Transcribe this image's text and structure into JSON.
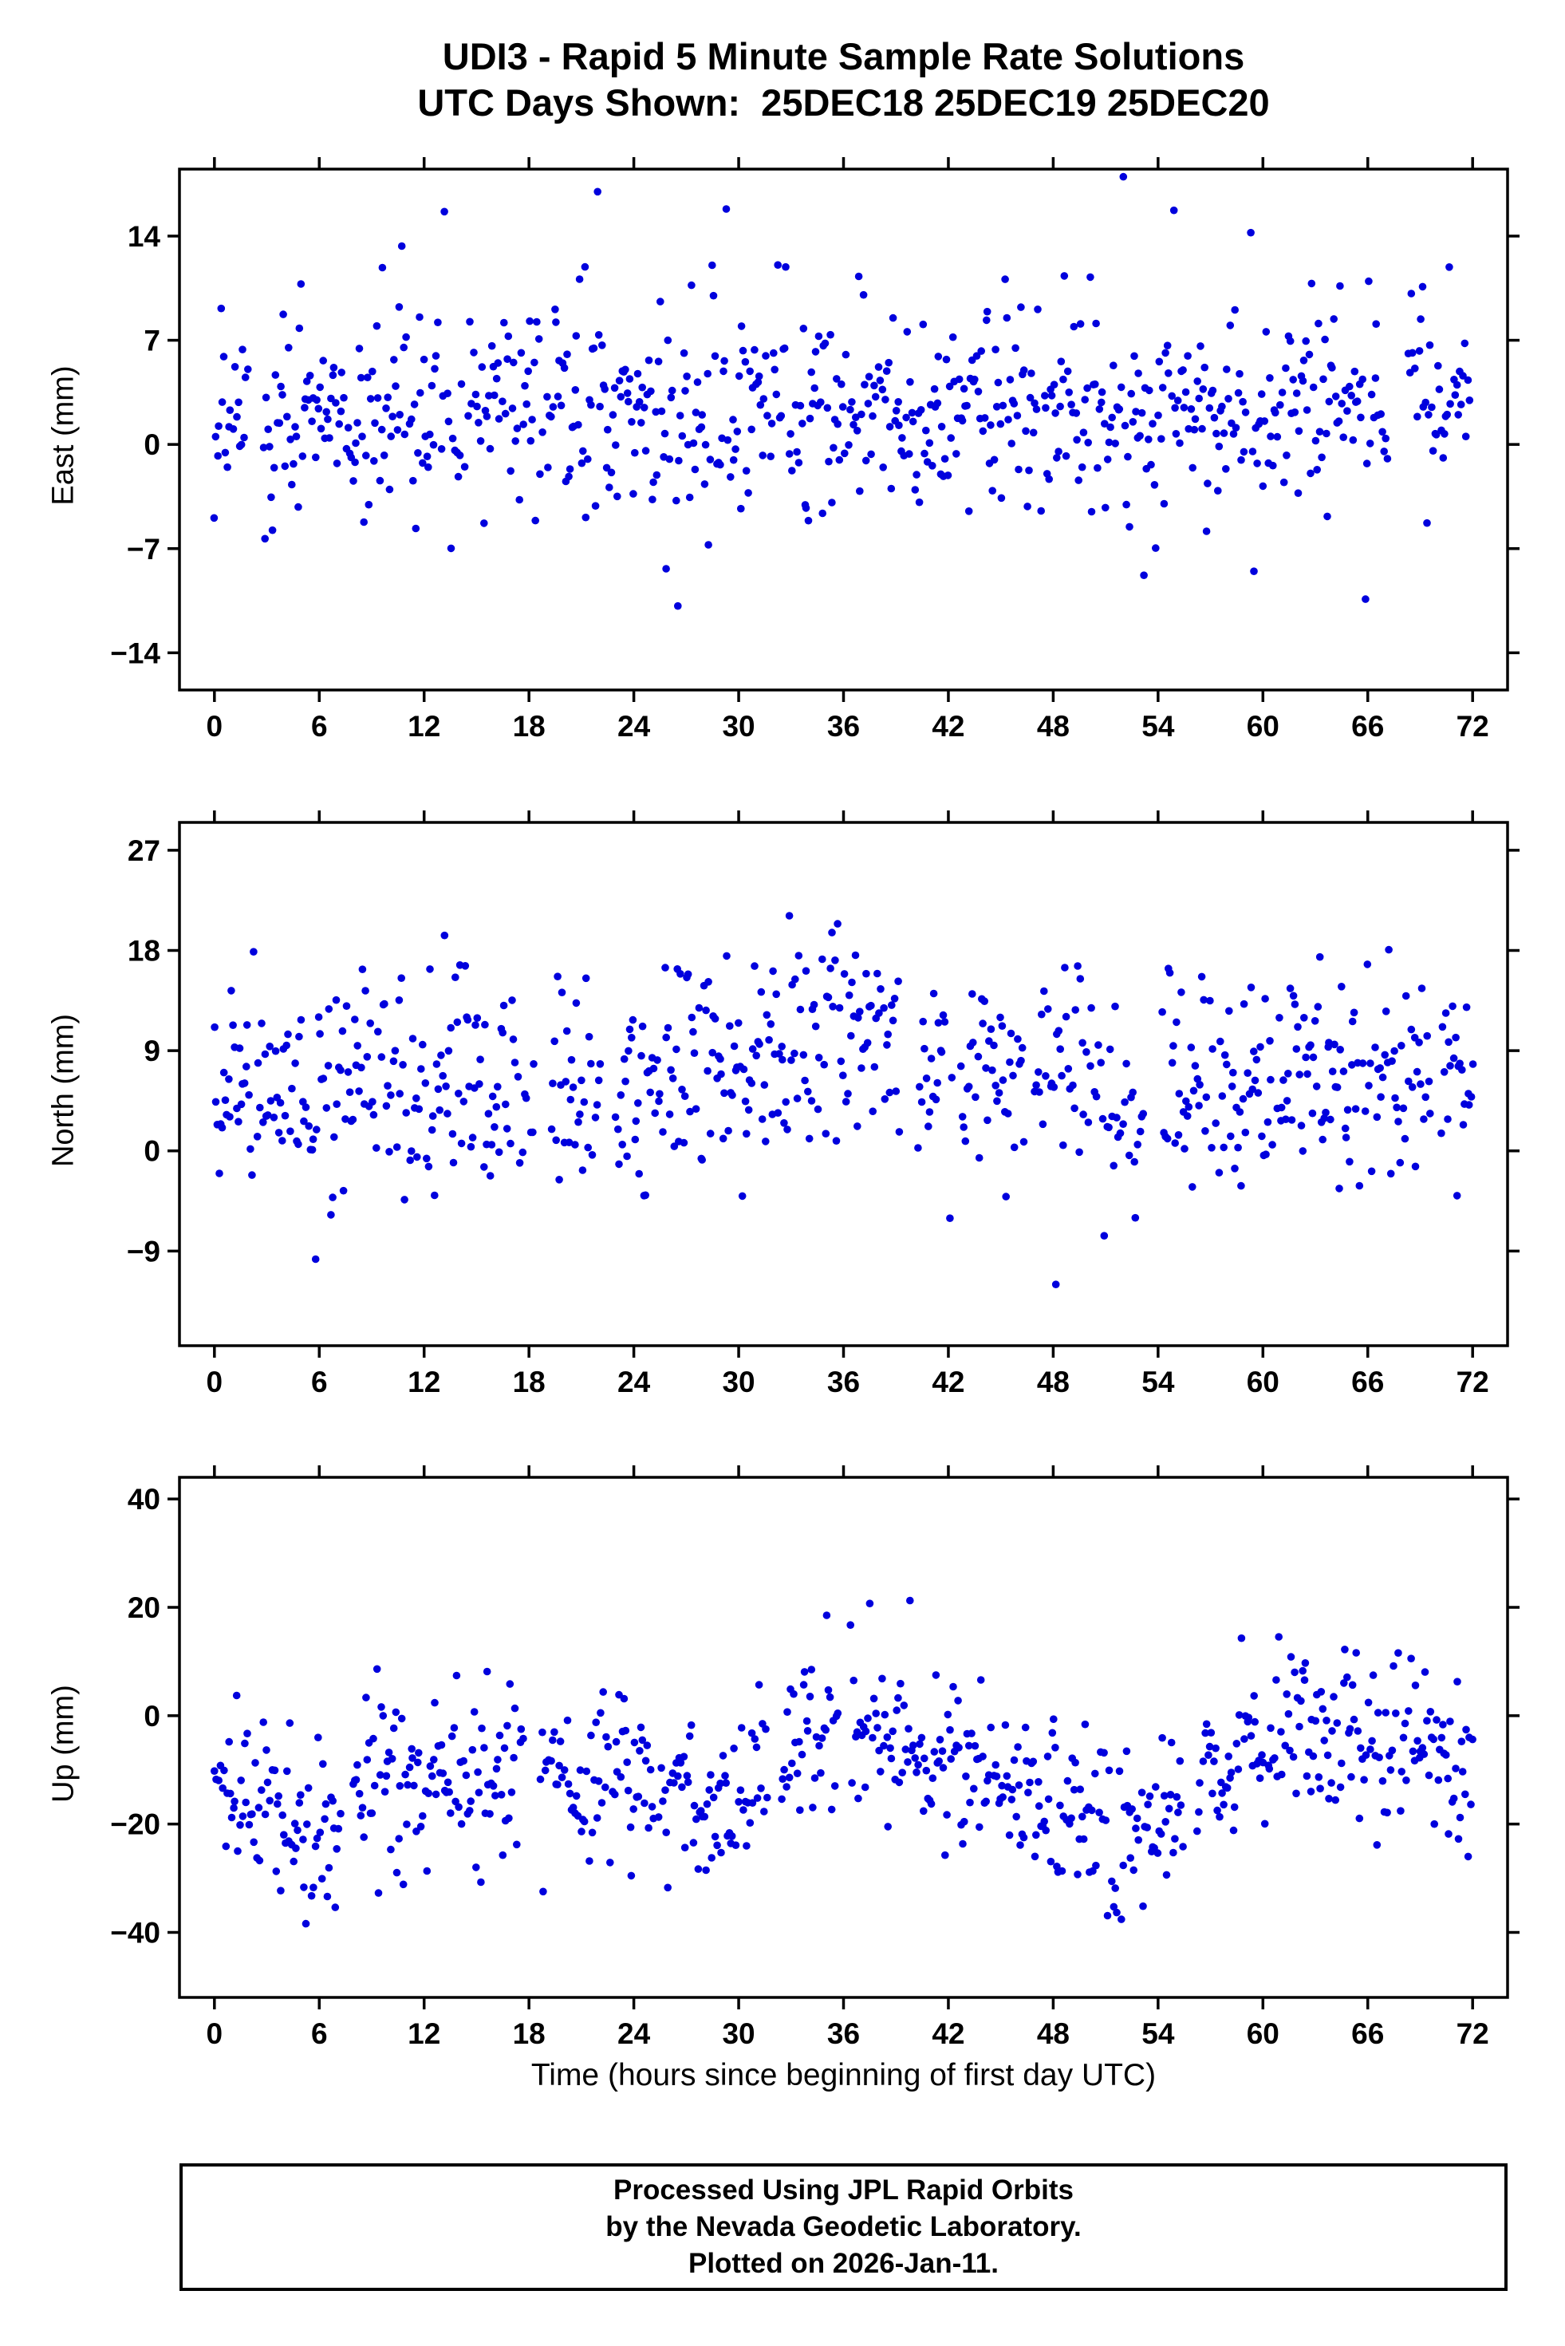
{
  "title_line1": "UDI3 - Rapid 5 Minute Sample Rate Solutions",
  "title_line2": "UTC Days Shown:  25DEC18 25DEC19 25DEC20",
  "footer": {
    "line1": "Processed Using JPL Rapid Orbits",
    "line2": "by the Nevada Geodetic Laboratory.",
    "line3": "Plotted on 2026-Jan-11."
  },
  "colors": {
    "point": "#0000dd",
    "axis": "#000000",
    "background": "#ffffff"
  },
  "chart_data": [
    {
      "type": "scatter",
      "title": "",
      "ylabel": "East (mm)",
      "xlabel": "",
      "xlim": [
        -2,
        74
      ],
      "ylim": [
        -16.5,
        18.5
      ],
      "xticks": [
        0,
        6,
        12,
        18,
        24,
        30,
        36,
        42,
        48,
        54,
        60,
        66,
        72
      ],
      "yticks": [
        -14,
        -7,
        0,
        7,
        14
      ],
      "grid": false,
      "legend": "none",
      "gen": {
        "seed": 20181225,
        "n": 800,
        "gap_rate": 0.05,
        "mean": 2.3,
        "std": 3.7,
        "outlier_rate": 0.018,
        "outlier_scale": 9,
        "bumps": []
      }
    },
    {
      "type": "scatter",
      "title": "",
      "ylabel": "North (mm)",
      "xlabel": "",
      "xlim": [
        -2,
        74
      ],
      "ylim": [
        -17.5,
        29.5
      ],
      "xticks": [
        0,
        6,
        12,
        18,
        24,
        30,
        36,
        42,
        48,
        54,
        60,
        66,
        72
      ],
      "yticks": [
        -9,
        0,
        9,
        18,
        27
      ],
      "grid": false,
      "legend": "none",
      "gen": {
        "seed": 20191225,
        "n": 800,
        "gap_rate": 0.05,
        "mean": 6.4,
        "std": 4.7,
        "outlier_rate": 0.02,
        "outlier_scale": 9,
        "bumps": [
          {
            "c": 36,
            "w": 2.5,
            "a": 5
          }
        ]
      }
    },
    {
      "type": "scatter",
      "title": "",
      "ylabel": "Up (mm)",
      "xlabel": "Time (hours since beginning of first day UTC)",
      "xlim": [
        -2,
        74
      ],
      "ylim": [
        -52,
        44
      ],
      "xticks": [
        0,
        6,
        12,
        18,
        24,
        30,
        36,
        42,
        48,
        54,
        60,
        66,
        72
      ],
      "yticks": [
        -40,
        -20,
        0,
        20,
        40
      ],
      "grid": false,
      "legend": "none",
      "gen": {
        "seed": 20201225,
        "n": 800,
        "gap_rate": 0.05,
        "mean": -10.5,
        "std": 8.0,
        "outlier_rate": 0.012,
        "outlier_scale": 16,
        "bumps": [
          {
            "c": 5,
            "w": 2,
            "a": -11
          },
          {
            "c": 29,
            "w": 2,
            "a": -11
          },
          {
            "c": 52.5,
            "w": 3.5,
            "a": -15
          },
          {
            "c": 35,
            "w": 3.5,
            "a": 9
          },
          {
            "c": 63,
            "w": 7,
            "a": 7
          }
        ]
      }
    }
  ]
}
